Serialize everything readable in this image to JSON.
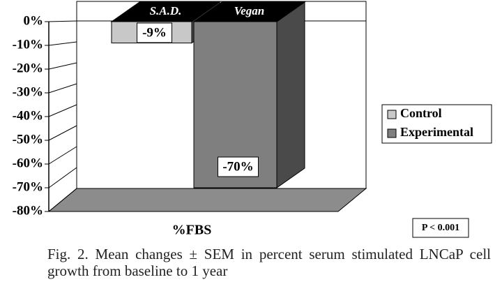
{
  "chart_data": {
    "type": "bar",
    "categories": [
      "S.A.D.",
      "Vegan"
    ],
    "series": [
      {
        "name": "Control",
        "color": "#c8c8c8",
        "values": [
          -9,
          null
        ],
        "value_labels": [
          "-9%",
          null
        ]
      },
      {
        "name": "Experimental",
        "color": "#7f7f7f",
        "values": [
          null,
          -70
        ],
        "value_labels": [
          null,
          "-70%"
        ]
      }
    ],
    "ylim": [
      -80,
      0
    ],
    "yticks": [
      {
        "value": 0,
        "label": "0%"
      },
      {
        "value": -10,
        "label": "-10%"
      },
      {
        "value": -20,
        "label": "-20%"
      },
      {
        "value": -30,
        "label": "-30%"
      },
      {
        "value": -40,
        "label": "-40%"
      },
      {
        "value": -50,
        "label": "-50%"
      },
      {
        "value": -60,
        "label": "-60%"
      },
      {
        "value": -70,
        "label": "-70%"
      },
      {
        "value": -80,
        "label": "-80%"
      }
    ],
    "xlabel": "%FBS",
    "annotation": "P < 0.001",
    "legend": "right",
    "caption": "Fig. 2. Mean changes ± SEM in percent serum stimulated LNCaP cell growth from baseline to 1 year"
  }
}
